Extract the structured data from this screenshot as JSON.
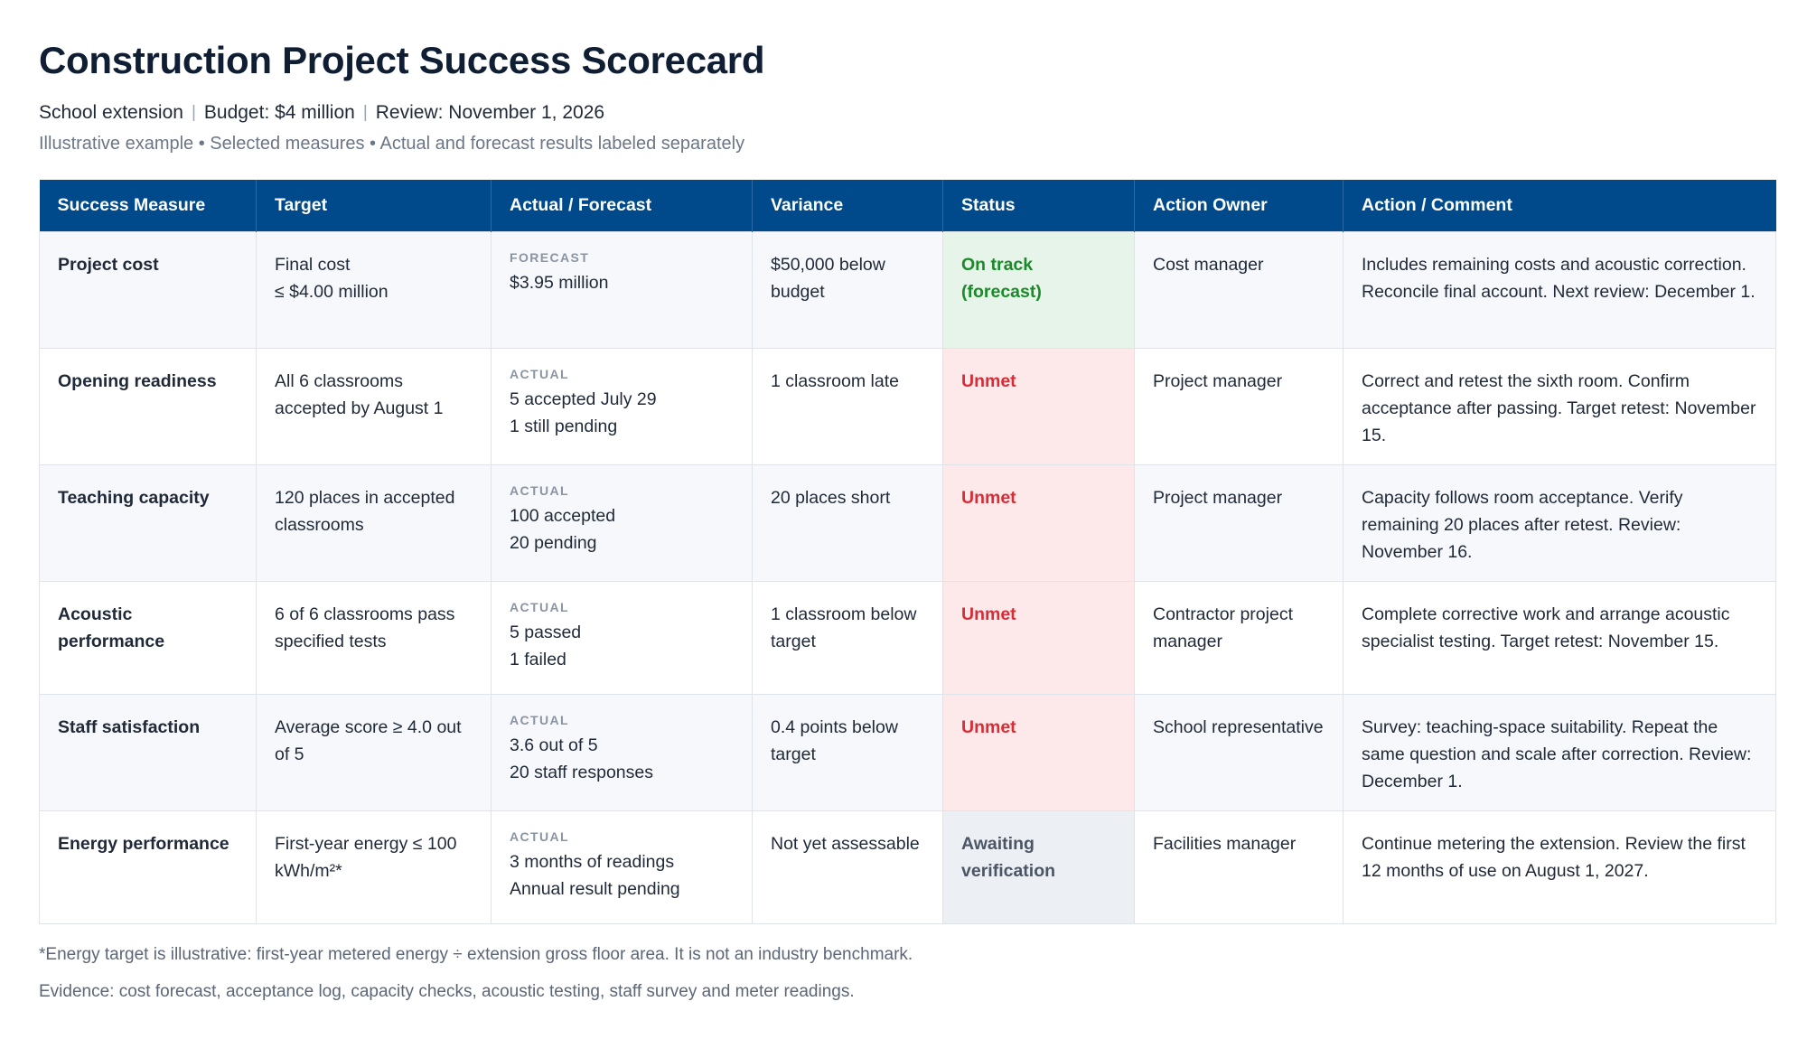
{
  "header": {
    "title": "Construction Project Success Scorecard",
    "meta": [
      "School extension",
      "Budget: $4 million",
      "Review: November 1, 2026"
    ],
    "meta_separator": "|",
    "note": "Illustrative example • Selected measures • Actual and forecast results labeled separately"
  },
  "table": {
    "columns": [
      "Success Measure",
      "Target",
      "Actual / Forecast",
      "Variance",
      "Status",
      "Action Owner",
      "Action / Comment"
    ],
    "rows": [
      {
        "measure": "Project cost",
        "target": [
          "Final cost",
          "≤ $4.00 million"
        ],
        "result_tag": "FORECAST",
        "result": [
          "$3.95 million"
        ],
        "variance": "$50,000 below budget",
        "status": "On track (forecast)",
        "status_kind": "ontrack",
        "owner": "Cost manager",
        "comment": "Includes remaining costs and acoustic correction. Reconcile final account. Next review: December 1."
      },
      {
        "measure": "Opening readiness",
        "target": [
          "All 6 classrooms accepted by August 1"
        ],
        "result_tag": "ACTUAL",
        "result": [
          "5 accepted July 29",
          "1 still pending"
        ],
        "variance": "1 classroom late",
        "status": "Unmet",
        "status_kind": "unmet",
        "owner": "Project manager",
        "comment": "Correct and retest the sixth room. Confirm acceptance after passing. Target retest: November 15."
      },
      {
        "measure": "Teaching capacity",
        "target": [
          "120 places in accepted classrooms"
        ],
        "result_tag": "ACTUAL",
        "result": [
          "100 accepted",
          "20 pending"
        ],
        "variance": "20 places short",
        "status": "Unmet",
        "status_kind": "unmet",
        "owner": "Project manager",
        "comment": "Capacity follows room acceptance. Verify remaining 20 places after retest. Review: November 16."
      },
      {
        "measure": "Acoustic performance",
        "target": [
          "6 of 6 classrooms pass specified tests"
        ],
        "result_tag": "ACTUAL",
        "result": [
          "5 passed",
          "1 failed"
        ],
        "variance": "1 classroom below target",
        "status": "Unmet",
        "status_kind": "unmet",
        "owner": "Contractor project manager",
        "comment": "Complete corrective work and arrange acoustic specialist testing. Target retest: November 15."
      },
      {
        "measure": "Staff satisfaction",
        "target": [
          "Average score ≥ 4.0 out of 5"
        ],
        "result_tag": "ACTUAL",
        "result": [
          "3.6 out of 5",
          "20 staff responses"
        ],
        "variance": "0.4 points below target",
        "status": "Unmet",
        "status_kind": "unmet",
        "owner": "School representative",
        "comment": "Survey: teaching-space suitability. Repeat the same question and scale after correction. Review: December 1."
      },
      {
        "measure": "Energy performance",
        "target": [
          "First-year energy ≤ 100 kWh/m²*"
        ],
        "result_tag": "ACTUAL",
        "result": [
          "3 months of readings",
          "Annual result pending"
        ],
        "variance": "Not yet assessable",
        "status": "Awaiting verification",
        "status_kind": "awaiting",
        "owner": "Facilities manager",
        "comment": "Continue metering the extension. Review the first 12 months of use on August 1, 2027."
      }
    ]
  },
  "footnotes": {
    "energy": "*Energy target is illustrative: first-year metered energy ÷ extension gross floor area. It is not an industry benchmark.",
    "evidence": "Evidence: cost forecast, acceptance log, capacity checks, acoustic testing, staff survey and meter readings."
  },
  "colors": {
    "header_bg": "#004a8c",
    "ontrack": "#1a8a2a",
    "unmet": "#d92c36",
    "awaiting": "#4b5563"
  }
}
